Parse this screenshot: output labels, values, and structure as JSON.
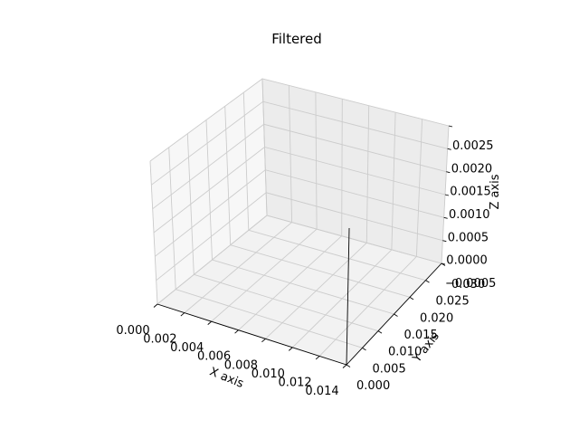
{
  "chart_data": {
    "type": "scatter",
    "projection": "3d",
    "title": "Filtered",
    "xlabel": "X axis",
    "ylabel": "Y axis",
    "zlabel": "Z axis",
    "grid": true,
    "xlim": [
      0.0,
      0.014
    ],
    "ylim": [
      0.0,
      0.03
    ],
    "zlim": [
      -0.0005,
      0.0025
    ],
    "x_ticks": [
      "0.000",
      "0.002",
      "0.004",
      "0.006",
      "0.008",
      "0.010",
      "0.012",
      "0.014"
    ],
    "y_ticks": [
      "0.000",
      "0.005",
      "0.010",
      "0.015",
      "0.020",
      "0.025",
      "0.030"
    ],
    "z_ticks": [
      "−0.0005",
      "0.0000",
      "0.0005",
      "0.0010",
      "0.0015",
      "0.0020",
      "0.0025"
    ],
    "series": []
  }
}
